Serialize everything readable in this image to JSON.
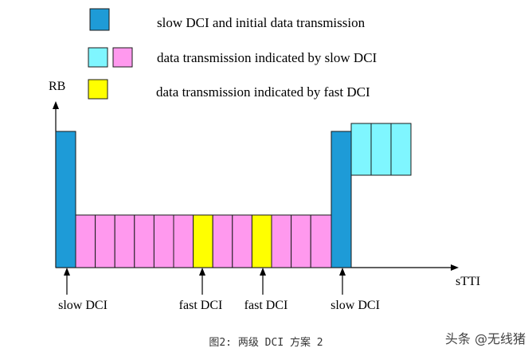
{
  "legend": [
    {
      "label": "slow DCI and initial data transmission",
      "colors": [
        "#1e9bd7"
      ]
    },
    {
      "label": "data transmission indicated by slow DCI",
      "colors": [
        "#7ff6ff",
        "#ff99ee"
      ]
    },
    {
      "label": "data transmission indicated by fast DCI",
      "colors": [
        "#ffff00"
      ]
    }
  ],
  "axes": {
    "y_label": "RB",
    "x_label": "sTTI"
  },
  "timeline": {
    "segments": [
      {
        "type": "slow_dci",
        "fill": "#1e9bd7"
      },
      {
        "type": "slow_data",
        "fill": "#ff99ee"
      },
      {
        "type": "slow_data",
        "fill": "#ff99ee"
      },
      {
        "type": "slow_data",
        "fill": "#ff99ee"
      },
      {
        "type": "slow_data",
        "fill": "#ff99ee"
      },
      {
        "type": "slow_data",
        "fill": "#ff99ee"
      },
      {
        "type": "slow_data",
        "fill": "#ff99ee"
      },
      {
        "type": "fast_data",
        "fill": "#ffff00"
      },
      {
        "type": "slow_data",
        "fill": "#ff99ee"
      },
      {
        "type": "slow_data",
        "fill": "#ff99ee"
      },
      {
        "type": "fast_data",
        "fill": "#ffff00"
      },
      {
        "type": "slow_data",
        "fill": "#ff99ee"
      },
      {
        "type": "slow_data",
        "fill": "#ff99ee"
      },
      {
        "type": "slow_data",
        "fill": "#ff99ee"
      },
      {
        "type": "slow_dci",
        "fill": "#1e9bd7"
      },
      {
        "type": "slow_data",
        "fill": "#7ff6ff"
      },
      {
        "type": "slow_data",
        "fill": "#7ff6ff"
      },
      {
        "type": "slow_data",
        "fill": "#7ff6ff"
      }
    ]
  },
  "markers": [
    {
      "label": "slow DCI"
    },
    {
      "label": "fast DCI"
    },
    {
      "label": "fast DCI"
    },
    {
      "label": "slow DCI"
    }
  ],
  "caption": "图2: 两级 DCI 方案 2",
  "watermark": "头条 @无线猪",
  "colors": {
    "slow_dci": "#1e9bd7",
    "slow_data_pink": "#ff99ee",
    "slow_data_cyan": "#7ff6ff",
    "fast_data": "#ffff00",
    "outline": "#1a1a1a"
  }
}
